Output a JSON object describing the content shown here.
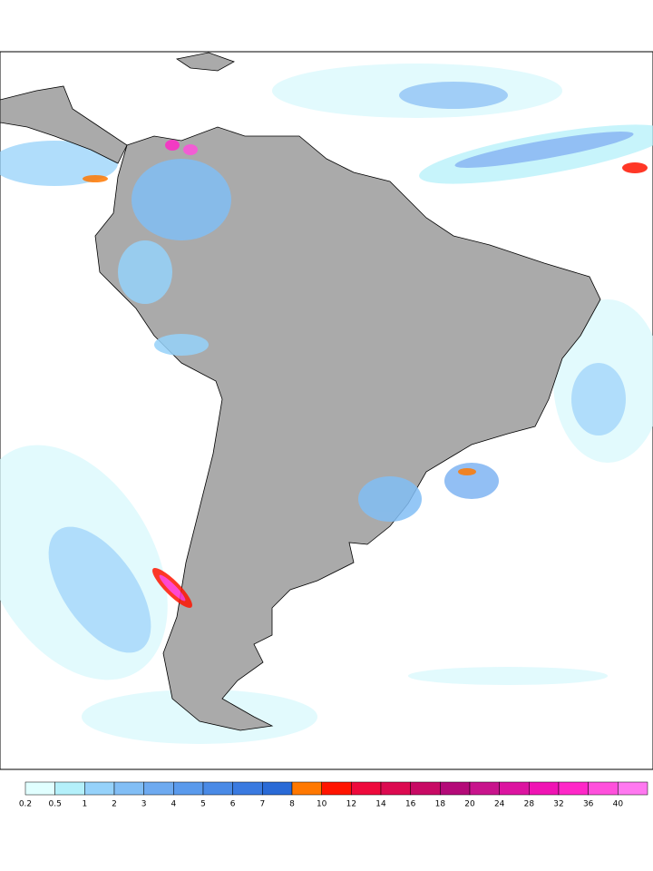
{
  "legend": {
    "levels": [
      0.2,
      0.5,
      1,
      2,
      3,
      4,
      5,
      6,
      7,
      8,
      10,
      12,
      14,
      16,
      18,
      20,
      24,
      28,
      32,
      36,
      40
    ],
    "colors": [
      "#e1ffff",
      "#b4f0fa",
      "#96d2fa",
      "#82bef5",
      "#6eaaf0",
      "#5a9aec",
      "#4a8ae6",
      "#3a7ae0",
      "#2a6ad6",
      "#ff7800",
      "#ff1400",
      "#ee0a3c",
      "#dc0a50",
      "#c80a64",
      "#b40a78",
      "#c8148c",
      "#dc14a0",
      "#f014b4",
      "#ff28c8",
      "#ff50dc",
      "#ff78f0"
    ]
  }
}
